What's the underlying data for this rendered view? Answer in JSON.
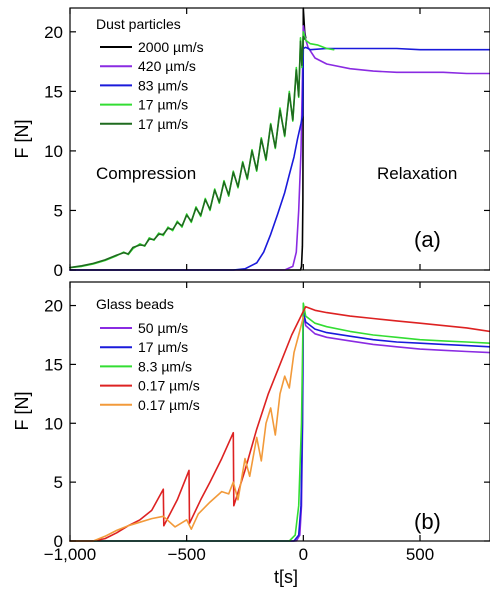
{
  "chart_data": [
    {
      "type": "line",
      "panel_label": "(a)",
      "legend_title": "Dust particles",
      "legend_position": "top-left",
      "ylabel": "F [N]",
      "xlabel": "",
      "xlim": [
        -1000,
        800
      ],
      "ylim": [
        0,
        22
      ],
      "y_ticks": [
        0,
        5,
        10,
        15,
        20
      ],
      "annotations": [
        "Compression",
        "Relaxation"
      ],
      "series": [
        {
          "name": "2000 µm/s",
          "color": "#000000",
          "points": [
            [
              -1000,
              0
            ],
            [
              -12,
              0
            ],
            [
              -8,
              0.3
            ],
            [
              -4,
              2
            ],
            [
              -2,
              6
            ],
            [
              0,
              22
            ],
            [
              3,
              21
            ],
            [
              6,
              20
            ],
            [
              10,
              19.5
            ]
          ]
        },
        {
          "name": "420 µm/s",
          "color": "#8a2be2",
          "points": [
            [
              -1000,
              0
            ],
            [
              -80,
              0
            ],
            [
              -45,
              0.3
            ],
            [
              -30,
              1.5
            ],
            [
              -20,
              5
            ],
            [
              -10,
              10
            ],
            [
              -4,
              16
            ],
            [
              0,
              20.5
            ],
            [
              8,
              19.5
            ],
            [
              20,
              18.7
            ],
            [
              50,
              17.8
            ],
            [
              100,
              17.3
            ],
            [
              200,
              16.9
            ],
            [
              300,
              16.7
            ],
            [
              400,
              16.6
            ],
            [
              500,
              16.6
            ],
            [
              600,
              16.6
            ],
            [
              700,
              16.5
            ],
            [
              800,
              16.5
            ]
          ]
        },
        {
          "name": "83 µm/s",
          "color": "#1a1adb",
          "points": [
            [
              -1000,
              0
            ],
            [
              -300,
              0
            ],
            [
              -250,
              0.1
            ],
            [
              -200,
              0.6
            ],
            [
              -170,
              1.5
            ],
            [
              -140,
              3
            ],
            [
              -110,
              4.7
            ],
            [
              -80,
              6.5
            ],
            [
              -60,
              8
            ],
            [
              -40,
              9.5
            ],
            [
              -25,
              11
            ],
            [
              -10,
              12.3
            ],
            [
              -3,
              13
            ],
            [
              0,
              18.6
            ],
            [
              10,
              18.7
            ],
            [
              30,
              18.5
            ],
            [
              100,
              18.6
            ],
            [
              200,
              18.6
            ],
            [
              300,
              18.6
            ],
            [
              400,
              18.6
            ],
            [
              500,
              18.5
            ],
            [
              600,
              18.5
            ],
            [
              700,
              18.5
            ],
            [
              800,
              18.5
            ]
          ]
        },
        {
          "name": "17 µm/s",
          "color": "#33dd33",
          "points": [
            [
              -1000,
              0.2
            ],
            [
              -950,
              0.3
            ],
            [
              -900,
              0.5
            ],
            [
              -850,
              0.8
            ],
            [
              -800,
              1.2
            ],
            [
              -770,
              1.5
            ],
            [
              -750,
              1.3
            ],
            [
              -730,
              1.8
            ],
            [
              -700,
              2.2
            ],
            [
              -680,
              2.0
            ],
            [
              -660,
              2.7
            ],
            [
              -640,
              2.5
            ],
            [
              -620,
              3.1
            ],
            [
              -600,
              2.9
            ],
            [
              -580,
              3.6
            ],
            [
              -560,
              3.3
            ],
            [
              -540,
              4.1
            ],
            [
              -520,
              3.6
            ],
            [
              -500,
              4.7
            ],
            [
              -480,
              4.0
            ],
            [
              -460,
              5.3
            ],
            [
              -440,
              4.5
            ],
            [
              -420,
              6.0
            ],
            [
              -400,
              5.0
            ],
            [
              -380,
              6.8
            ],
            [
              -360,
              5.6
            ],
            [
              -340,
              7.5
            ],
            [
              -320,
              6.2
            ],
            [
              -300,
              8.3
            ],
            [
              -280,
              6.9
            ],
            [
              -260,
              9.1
            ],
            [
              -240,
              7.6
            ],
            [
              -220,
              10.1
            ],
            [
              -200,
              8.3
            ],
            [
              -180,
              11.1
            ],
            [
              -160,
              9.2
            ],
            [
              -140,
              12.3
            ],
            [
              -120,
              10.2
            ],
            [
              -100,
              13.6
            ],
            [
              -80,
              11.2
            ],
            [
              -60,
              15.0
            ],
            [
              -45,
              12.5
            ],
            [
              -30,
              17.0
            ],
            [
              -20,
              14.5
            ],
            [
              -12,
              19.5
            ],
            [
              -6,
              17.0
            ],
            [
              0,
              20.0
            ],
            [
              10,
              19.3
            ],
            [
              30,
              19.0
            ],
            [
              60,
              18.9
            ],
            [
              100,
              18.6
            ],
            [
              130,
              18.5
            ]
          ]
        },
        {
          "name": "17 µm/s",
          "color": "#1f6b1f",
          "points": [
            [
              -1000,
              0.2
            ],
            [
              -950,
              0.35
            ],
            [
              -900,
              0.55
            ],
            [
              -850,
              0.85
            ],
            [
              -800,
              1.25
            ],
            [
              -770,
              1.45
            ],
            [
              -750,
              1.35
            ],
            [
              -730,
              1.9
            ],
            [
              -700,
              2.1
            ],
            [
              -680,
              2.05
            ],
            [
              -660,
              2.6
            ],
            [
              -640,
              2.55
            ],
            [
              -620,
              3.0
            ],
            [
              -600,
              3.0
            ],
            [
              -580,
              3.5
            ],
            [
              -560,
              3.4
            ],
            [
              -540,
              4.0
            ],
            [
              -520,
              3.7
            ],
            [
              -500,
              4.6
            ],
            [
              -480,
              4.1
            ],
            [
              -460,
              5.2
            ],
            [
              -440,
              4.6
            ],
            [
              -420,
              5.9
            ],
            [
              -400,
              5.1
            ],
            [
              -380,
              6.7
            ],
            [
              -360,
              5.7
            ],
            [
              -340,
              7.4
            ],
            [
              -320,
              6.3
            ],
            [
              -300,
              8.2
            ],
            [
              -280,
              7.0
            ],
            [
              -260,
              9.0
            ],
            [
              -240,
              7.7
            ],
            [
              -220,
              10.0
            ],
            [
              -200,
              8.4
            ],
            [
              -180,
              11.0
            ],
            [
              -160,
              9.3
            ],
            [
              -140,
              12.2
            ],
            [
              -120,
              10.3
            ],
            [
              -100,
              13.4
            ],
            [
              -80,
              11.3
            ],
            [
              -60,
              14.8
            ],
            [
              -45,
              12.6
            ],
            [
              -30,
              16.8
            ],
            [
              -20,
              14.6
            ],
            [
              -12,
              19.2
            ],
            [
              -6,
              17.2
            ],
            [
              0,
              19.6
            ],
            [
              5,
              19.4
            ]
          ]
        }
      ]
    },
    {
      "type": "line",
      "panel_label": "(b)",
      "legend_title": "Glass beads",
      "legend_position": "top-left",
      "ylabel": "F [N]",
      "xlabel": "t[s]",
      "xlim": [
        -1000,
        800
      ],
      "ylim": [
        0,
        22
      ],
      "x_ticks": [
        "−1,000",
        "−500",
        "0",
        "500"
      ],
      "x_tick_values": [
        -1000,
        -500,
        0,
        500
      ],
      "y_ticks": [
        0,
        5,
        10,
        15,
        20
      ],
      "series": [
        {
          "name": "50 µm/s",
          "color": "#8a2be2",
          "points": [
            [
              -1000,
              0
            ],
            [
              -30,
              0
            ],
            [
              -15,
              0.5
            ],
            [
              -8,
              3
            ],
            [
              -3,
              10
            ],
            [
              0,
              19.2
            ],
            [
              10,
              18.3
            ],
            [
              50,
              17.6
            ],
            [
              100,
              17.3
            ],
            [
              200,
              17.0
            ],
            [
              300,
              16.7
            ],
            [
              400,
              16.5
            ],
            [
              500,
              16.3
            ],
            [
              600,
              16.2
            ],
            [
              700,
              16.1
            ],
            [
              800,
              16.0
            ]
          ]
        },
        {
          "name": "17 µm/s",
          "color": "#1a1adb",
          "points": [
            [
              -1000,
              0
            ],
            [
              -40,
              0
            ],
            [
              -20,
              0.5
            ],
            [
              -10,
              3
            ],
            [
              -4,
              10
            ],
            [
              0,
              19.5
            ],
            [
              10,
              18.6
            ],
            [
              50,
              18.0
            ],
            [
              100,
              17.7
            ],
            [
              200,
              17.4
            ],
            [
              300,
              17.1
            ],
            [
              400,
              16.9
            ],
            [
              500,
              16.8
            ],
            [
              600,
              16.7
            ],
            [
              700,
              16.6
            ],
            [
              800,
              16.5
            ]
          ]
        },
        {
          "name": "8.3 µm/s",
          "color": "#33dd33",
          "points": [
            [
              -1000,
              0
            ],
            [
              -60,
              0
            ],
            [
              -35,
              0.5
            ],
            [
              -20,
              3
            ],
            [
              -8,
              10
            ],
            [
              0,
              20.2
            ],
            [
              10,
              19.1
            ],
            [
              50,
              18.5
            ],
            [
              100,
              18.2
            ],
            [
              200,
              17.8
            ],
            [
              300,
              17.5
            ],
            [
              400,
              17.3
            ],
            [
              500,
              17.1
            ],
            [
              600,
              17.0
            ],
            [
              700,
              16.9
            ],
            [
              800,
              16.8
            ]
          ]
        },
        {
          "name": "0.17 µm/s",
          "color": "#dd2222",
          "points": [
            [
              -1000,
              0
            ],
            [
              -900,
              0
            ],
            [
              -850,
              0.2
            ],
            [
              -800,
              0.7
            ],
            [
              -750,
              1.3
            ],
            [
              -700,
              1.8
            ],
            [
              -650,
              2.6
            ],
            [
              -600,
              4.4
            ],
            [
              -598,
              1.3
            ],
            [
              -540,
              3.5
            ],
            [
              -490,
              6.0
            ],
            [
              -488,
              1.5
            ],
            [
              -440,
              3.5
            ],
            [
              -400,
              5.0
            ],
            [
              -350,
              7.0
            ],
            [
              -300,
              9.2
            ],
            [
              -298,
              3.0
            ],
            [
              -250,
              6.0
            ],
            [
              -200,
              9.5
            ],
            [
              -150,
              12.5
            ],
            [
              -100,
              15.0
            ],
            [
              -50,
              17.5
            ],
            [
              0,
              19.5
            ],
            [
              10,
              19.9
            ],
            [
              50,
              19.6
            ],
            [
              100,
              19.4
            ],
            [
              200,
              19.1
            ],
            [
              300,
              18.9
            ],
            [
              400,
              18.7
            ],
            [
              500,
              18.5
            ],
            [
              600,
              18.3
            ],
            [
              700,
              18.1
            ],
            [
              800,
              17.8
            ]
          ]
        },
        {
          "name": "0.17 µm/s",
          "color": "#f29a3a",
          "points": [
            [
              -1000,
              0
            ],
            [
              -900,
              0
            ],
            [
              -850,
              0.4
            ],
            [
              -800,
              0.9
            ],
            [
              -750,
              1.3
            ],
            [
              -700,
              1.6
            ],
            [
              -650,
              1.9
            ],
            [
              -600,
              2.1
            ],
            [
              -550,
              1.2
            ],
            [
              -500,
              1.8
            ],
            [
              -480,
              1.0
            ],
            [
              -450,
              2.3
            ],
            [
              -400,
              3.3
            ],
            [
              -350,
              4.2
            ],
            [
              -320,
              4.0
            ],
            [
              -300,
              5.0
            ],
            [
              -280,
              3.5
            ],
            [
              -250,
              7.0
            ],
            [
              -230,
              5.5
            ],
            [
              -200,
              8.8
            ],
            [
              -180,
              6.8
            ],
            [
              -160,
              10.0
            ],
            [
              -140,
              11.3
            ],
            [
              -120,
              9.0
            ],
            [
              -100,
              12.5
            ],
            [
              -80,
              14.0
            ],
            [
              -60,
              13.0
            ],
            [
              -40,
              16.0
            ],
            [
              -20,
              17.5
            ],
            [
              0,
              19.0
            ]
          ]
        }
      ]
    }
  ]
}
